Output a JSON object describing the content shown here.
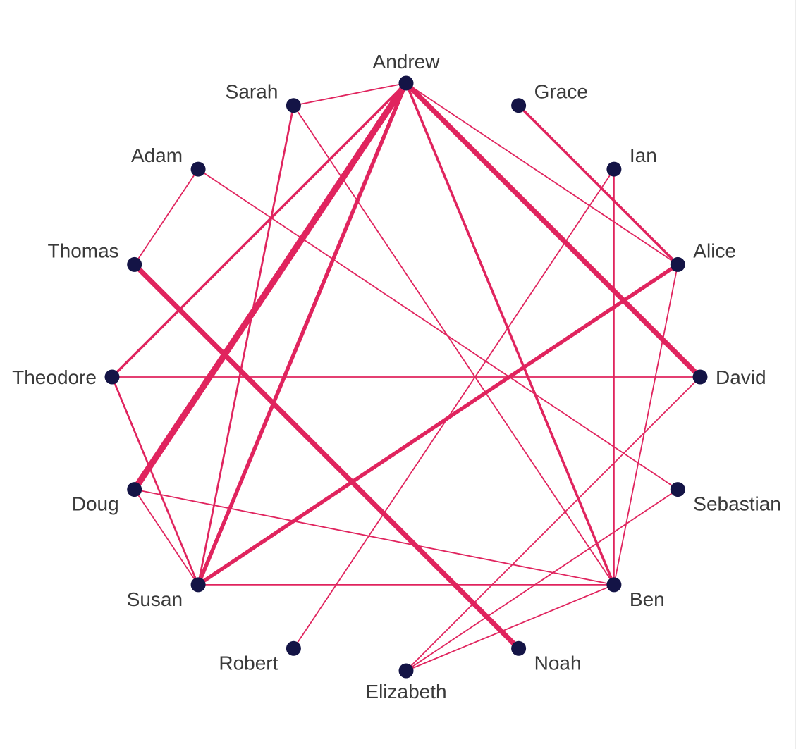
{
  "colors": {
    "edge": "#e0245e",
    "node": "#141446",
    "label": "#3a3a3a",
    "background": "#ffffff"
  },
  "nodes": [
    {
      "id": "Andrew",
      "label": "Andrew"
    },
    {
      "id": "Grace",
      "label": "Grace"
    },
    {
      "id": "Ian",
      "label": "Ian"
    },
    {
      "id": "Alice",
      "label": "Alice"
    },
    {
      "id": "David",
      "label": "David"
    },
    {
      "id": "Sebastian",
      "label": "Sebastian"
    },
    {
      "id": "Ben",
      "label": "Ben"
    },
    {
      "id": "Noah",
      "label": "Noah"
    },
    {
      "id": "Elizabeth",
      "label": "Elizabeth"
    },
    {
      "id": "Robert",
      "label": "Robert"
    },
    {
      "id": "Susan",
      "label": "Susan"
    },
    {
      "id": "Doug",
      "label": "Doug"
    },
    {
      "id": "Theodore",
      "label": "Theodore"
    },
    {
      "id": "Thomas",
      "label": "Thomas"
    },
    {
      "id": "Adam",
      "label": "Adam"
    },
    {
      "id": "Sarah",
      "label": "Sarah"
    }
  ],
  "edges": [
    {
      "source": "Andrew",
      "target": "Doug",
      "weight": 5
    },
    {
      "source": "Andrew",
      "target": "David",
      "weight": 4
    },
    {
      "source": "Thomas",
      "target": "Noah",
      "weight": 4
    },
    {
      "source": "Andrew",
      "target": "Susan",
      "weight": 3
    },
    {
      "source": "Susan",
      "target": "Alice",
      "weight": 3
    },
    {
      "source": "Andrew",
      "target": "Ben",
      "weight": 2
    },
    {
      "source": "Andrew",
      "target": "Theodore",
      "weight": 2
    },
    {
      "source": "Grace",
      "target": "Alice",
      "weight": 2
    },
    {
      "source": "Sarah",
      "target": "Susan",
      "weight": 1.5
    },
    {
      "source": "Theodore",
      "target": "Susan",
      "weight": 1.5
    },
    {
      "source": "Andrew",
      "target": "Sarah",
      "weight": 1
    },
    {
      "source": "Andrew",
      "target": "Alice",
      "weight": 1
    },
    {
      "source": "Sarah",
      "target": "Ben",
      "weight": 1
    },
    {
      "source": "Adam",
      "target": "Thomas",
      "weight": 1
    },
    {
      "source": "Adam",
      "target": "Sebastian",
      "weight": 1
    },
    {
      "source": "Ian",
      "target": "Ben",
      "weight": 1
    },
    {
      "source": "Ian",
      "target": "Robert",
      "weight": 1
    },
    {
      "source": "Alice",
      "target": "Ben",
      "weight": 1
    },
    {
      "source": "Theodore",
      "target": "David",
      "weight": 1
    },
    {
      "source": "Doug",
      "target": "Ben",
      "weight": 1
    },
    {
      "source": "Doug",
      "target": "Susan",
      "weight": 1
    },
    {
      "source": "Susan",
      "target": "Ben",
      "weight": 1
    },
    {
      "source": "David",
      "target": "Elizabeth",
      "weight": 1
    },
    {
      "source": "Sebastian",
      "target": "Elizabeth",
      "weight": 1
    },
    {
      "source": "Ben",
      "target": "Elizabeth",
      "weight": 1
    }
  ]
}
